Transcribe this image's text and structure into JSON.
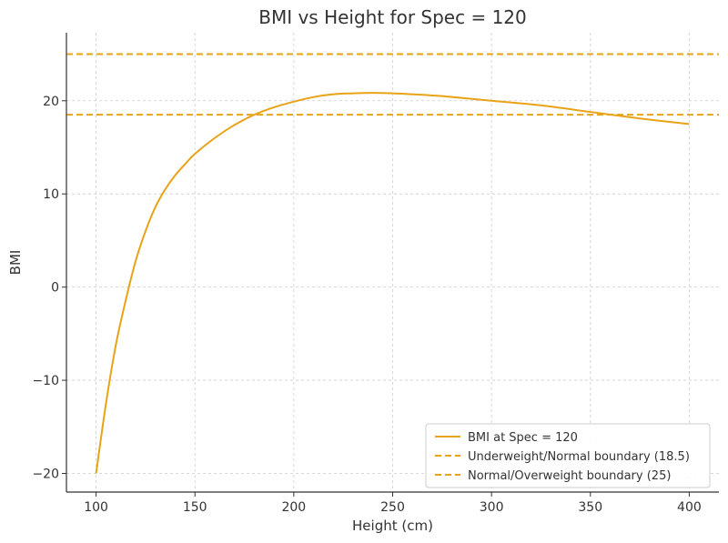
{
  "chart_data": {
    "type": "line",
    "title": "BMI vs Height for Spec = 120",
    "xlabel": "Height (cm)",
    "ylabel": "BMI",
    "xlim": [
      85,
      415
    ],
    "ylim": [
      -22,
      27.3
    ],
    "xticks": [
      100,
      150,
      200,
      250,
      300,
      350,
      400
    ],
    "yticks": [
      -20,
      -10,
      0,
      10,
      20
    ],
    "grid": true,
    "legend_position": "bottom-right",
    "series": [
      {
        "name": "BMI at Spec = 120",
        "style": "solid",
        "color": "#E8A317",
        "x": [
          100,
          105,
          110,
          115,
          120,
          125,
          130,
          135,
          140,
          145,
          150,
          160,
          170,
          180,
          190,
          200,
          210,
          220,
          230,
          240,
          250,
          260,
          275,
          300,
          325,
          350,
          375,
          400
        ],
        "y": [
          -20,
          -12.5,
          -6.2,
          -1.4,
          2.8,
          6.0,
          8.6,
          10.5,
          12.0,
          13.2,
          14.3,
          16.0,
          17.4,
          18.5,
          19.3,
          19.9,
          20.4,
          20.7,
          20.8,
          20.85,
          20.8,
          20.7,
          20.5,
          20.0,
          19.5,
          18.8,
          18.1,
          17.5
        ]
      },
      {
        "name": "Underweight/Normal boundary (18.5)",
        "style": "dashed",
        "color": "#E8A317",
        "x": [
          85,
          415
        ],
        "y": [
          18.5,
          18.5
        ]
      },
      {
        "name": "Normal/Overweight boundary (25)",
        "style": "dashed",
        "color": "#E8A317",
        "x": [
          85,
          415
        ],
        "y": [
          25,
          25
        ]
      }
    ]
  }
}
